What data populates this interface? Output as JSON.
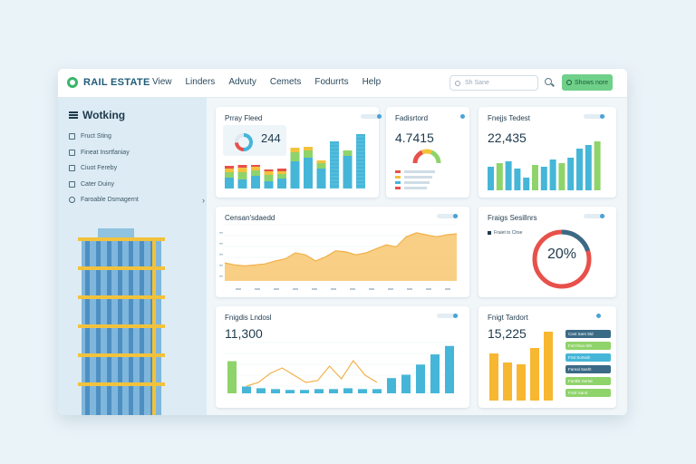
{
  "header": {
    "brand": "RAIL ESTATE",
    "nav": [
      "View",
      "Linders",
      "Advuty",
      "Cemets",
      "Fodurrts",
      "Help"
    ],
    "search_placeholder": "Sh Sane",
    "cta_label": "Shows nore"
  },
  "sidebar": {
    "title": "Wotking",
    "items": [
      "Fruct Sting",
      "Fineat Insrtfaniay",
      "Ciuot Fereby",
      "Cater Duiny",
      "Faroable Dsmagernt"
    ]
  },
  "cards": {
    "c1": {
      "title": "Prray Fleed",
      "value": "244",
      "bars": [
        {
          "segs": [
            12,
            6,
            4,
            3
          ]
        },
        {
          "segs": [
            10,
            8,
            5,
            3
          ]
        },
        {
          "segs": [
            14,
            6,
            4,
            2
          ]
        },
        {
          "segs": [
            8,
            7,
            4,
            2
          ]
        },
        {
          "segs": [
            11,
            5,
            3,
            3
          ]
        },
        {
          "segs": [
            30,
            10,
            5
          ]
        },
        {
          "segs": [
            34,
            8,
            4
          ]
        },
        {
          "segs": [
            22,
            6,
            3
          ]
        },
        {
          "segs": [
            52
          ]
        },
        {
          "segs": [
            36,
            6
          ]
        },
        {
          "segs": [
            60
          ]
        }
      ],
      "colors": {
        "primary": "#45b6d8",
        "green": "#8fd36b",
        "yellow": "#f2c23c",
        "red": "#e8504a"
      }
    },
    "c2": {
      "title": "Fadisrtord",
      "value": "4.7415",
      "legend_colors": [
        "#e8504a",
        "#f2c23c",
        "#45b6d8",
        "#e8504a"
      ]
    },
    "c3": {
      "title": "Fnejjs Tedest",
      "value": "22,435",
      "bars": [
        {
          "v": 26,
          "c": "#45b6d8"
        },
        {
          "v": 30,
          "c": "#8fd36b"
        },
        {
          "v": 32,
          "c": "#45b6d8"
        },
        {
          "v": 24,
          "c": "#45b6d8"
        },
        {
          "v": 14,
          "c": "#45b6d8"
        },
        {
          "v": 28,
          "c": "#8fd36b"
        },
        {
          "v": 26,
          "c": "#45b6d8"
        },
        {
          "v": 34,
          "c": "#45b6d8"
        },
        {
          "v": 30,
          "c": "#8fd36b"
        },
        {
          "v": 36,
          "c": "#45b6d8"
        },
        {
          "v": 46,
          "c": "#45b6d8"
        },
        {
          "v": 50,
          "c": "#45b6d8"
        },
        {
          "v": 54,
          "c": "#8fd36b"
        }
      ]
    },
    "c4": {
      "title": "Censan'sdaedd",
      "y": [
        18,
        16,
        15,
        16,
        17,
        20,
        22,
        28,
        26,
        20,
        24,
        30,
        29,
        26,
        28,
        32,
        36,
        34,
        44,
        48,
        46,
        44,
        46,
        47
      ]
    },
    "c5": {
      "title": "Fraigs Sesillnrs",
      "legend": "Fraiet to Clrse",
      "percent": 20,
      "label": "20%"
    },
    "c6": {
      "title": "Fnigdis Lndosl",
      "value": "11,300",
      "bars": [
        38,
        8,
        6,
        5,
        4,
        4,
        5,
        5,
        6,
        5,
        5,
        18,
        22,
        34,
        46,
        56
      ],
      "line": [
        0,
        4,
        14,
        20,
        12,
        4,
        6,
        22,
        8,
        28,
        12,
        4
      ]
    },
    "c7": {
      "title": "Fnigt Tardort",
      "value": "15,225",
      "bars": [
        52,
        42,
        40,
        58,
        76
      ],
      "tags": [
        {
          "label": "Cast Sant Sld",
          "c": "#3b6a86"
        },
        {
          "label": "Fort thoo Sth",
          "c": "#8fd36b"
        },
        {
          "label": "Frat Sortedt",
          "c": "#45b6d8"
        },
        {
          "label": "Fareal Sasht",
          "c": "#3b6a86"
        },
        {
          "label": "Fantlst Sertar",
          "c": "#8fd36b"
        },
        {
          "label": "Frart Sanrt",
          "c": "#8fd36b"
        }
      ]
    }
  }
}
